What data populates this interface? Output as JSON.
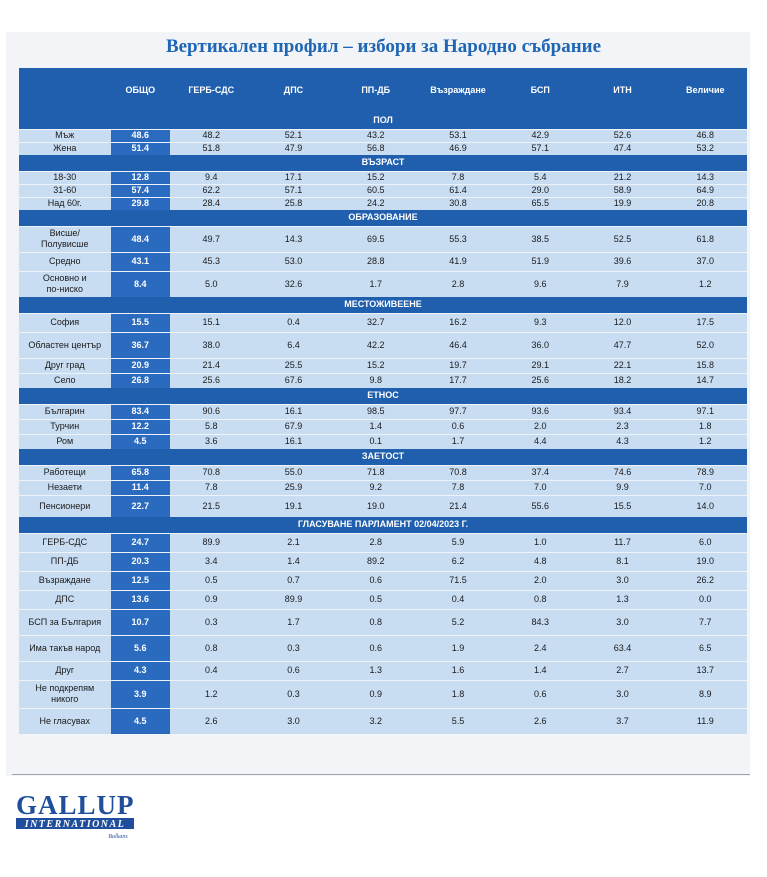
{
  "title": "Вертикален профил – избори за Народно събрание",
  "columns": [
    "",
    "ОБЩО",
    "ГЕРБ-СДС",
    "ДПС",
    "ПП-ДБ",
    "Възраждане",
    "БСП",
    "ИТН",
    "Величие"
  ],
  "sections": [
    {
      "title": "ПОЛ",
      "rows": [
        {
          "label": "Мъж",
          "values": [
            "48.6",
            "48.2",
            "52.1",
            "43.2",
            "53.1",
            "42.9",
            "52.6",
            "46.8"
          ]
        },
        {
          "label": "Жена",
          "values": [
            "51.4",
            "51.8",
            "47.9",
            "56.8",
            "46.9",
            "57.1",
            "47.4",
            "53.2"
          ]
        }
      ]
    },
    {
      "title": "ВЪЗРАСТ",
      "rows": [
        {
          "label": "18-30",
          "values": [
            "12.8",
            "9.4",
            "17.1",
            "15.2",
            "7.8",
            "5.4",
            "21.2",
            "14.3"
          ]
        },
        {
          "label": "31-60",
          "values": [
            "57.4",
            "62.2",
            "57.1",
            "60.5",
            "61.4",
            "29.0",
            "58.9",
            "64.9"
          ]
        },
        {
          "label": "Над 60г.",
          "values": [
            "29.8",
            "28.4",
            "25.8",
            "24.2",
            "30.8",
            "65.5",
            "19.9",
            "20.8"
          ]
        }
      ]
    },
    {
      "title": "ОБРАЗОВАНИЕ",
      "rows": [
        {
          "label": "Висше/\nПолувисше",
          "values": [
            "48.4",
            "49.7",
            "14.3",
            "69.5",
            "55.3",
            "38.5",
            "52.5",
            "61.8"
          ]
        },
        {
          "label": "Средно",
          "values": [
            "43.1",
            "45.3",
            "53.0",
            "28.8",
            "41.9",
            "51.9",
            "39.6",
            "37.0"
          ]
        },
        {
          "label": "Основно и\nпо-ниско",
          "values": [
            "8.4",
            "5.0",
            "32.6",
            "1.7",
            "2.8",
            "9.6",
            "7.9",
            "1.2"
          ]
        }
      ]
    },
    {
      "title": "МЕСТОЖИВЕЕНЕ",
      "rows": [
        {
          "label": "София",
          "values": [
            "15.5",
            "15.1",
            "0.4",
            "32.7",
            "16.2",
            "9.3",
            "12.0",
            "17.5"
          ]
        },
        {
          "label": "Областен център",
          "values": [
            "36.7",
            "38.0",
            "6.4",
            "42.2",
            "46.4",
            "36.0",
            "47.7",
            "52.0"
          ]
        },
        {
          "label": "Друг град",
          "values": [
            "20.9",
            "21.4",
            "25.5",
            "15.2",
            "19.7",
            "29.1",
            "22.1",
            "15.8"
          ]
        },
        {
          "label": "Село",
          "values": [
            "26.8",
            "25.6",
            "67.6",
            "9.8",
            "17.7",
            "25.6",
            "18.2",
            "14.7"
          ]
        }
      ]
    },
    {
      "title": "ЕТНОС",
      "rows": [
        {
          "label": "Българин",
          "values": [
            "83.4",
            "90.6",
            "16.1",
            "98.5",
            "97.7",
            "93.6",
            "93.4",
            "97.1"
          ]
        },
        {
          "label": "Турчин",
          "values": [
            "12.2",
            "5.8",
            "67.9",
            "1.4",
            "0.6",
            "2.0",
            "2.3",
            "1.8"
          ]
        },
        {
          "label": "Ром",
          "values": [
            "4.5",
            "3.6",
            "16.1",
            "0.1",
            "1.7",
            "4.4",
            "4.3",
            "1.2"
          ]
        }
      ]
    },
    {
      "title": "ЗАЕТОСТ",
      "rows": [
        {
          "label": "Работещи",
          "values": [
            "65.8",
            "70.8",
            "55.0",
            "71.8",
            "70.8",
            "37.4",
            "74.6",
            "78.9"
          ]
        },
        {
          "label": "Незаети",
          "values": [
            "11.4",
            "7.8",
            "25.9",
            "9.2",
            "7.8",
            "7.0",
            "9.9",
            "7.0"
          ]
        },
        {
          "label": "Пенсионери",
          "values": [
            "22.7",
            "21.5",
            "19.1",
            "19.0",
            "21.4",
            "55.6",
            "15.5",
            "14.0"
          ]
        }
      ]
    },
    {
      "title": "ГЛАСУВАНЕ ПАРЛАМЕНТ 02/04/2023 Г.",
      "rows": [
        {
          "label": "ГЕРБ-СДС",
          "values": [
            "24.7",
            "89.9",
            "2.1",
            "2.8",
            "5.9",
            "1.0",
            "11.7",
            "6.0"
          ]
        },
        {
          "label": "ПП-ДБ",
          "values": [
            "20.3",
            "3.4",
            "1.4",
            "89.2",
            "6.2",
            "4.8",
            "8.1",
            "19.0"
          ]
        },
        {
          "label": "Възраждане",
          "values": [
            "12.5",
            "0.5",
            "0.7",
            "0.6",
            "71.5",
            "2.0",
            "3.0",
            "26.2"
          ]
        },
        {
          "label": "ДПС",
          "values": [
            "13.6",
            "0.9",
            "89.9",
            "0.5",
            "0.4",
            "0.8",
            "1.3",
            "0.0"
          ]
        },
        {
          "label": "БСП за България",
          "values": [
            "10.7",
            "0.3",
            "1.7",
            "0.8",
            "5.2",
            "84.3",
            "3.0",
            "7.7"
          ]
        },
        {
          "label": "Има такъв народ",
          "values": [
            "5.6",
            "0.8",
            "0.3",
            "0.6",
            "1.9",
            "2.4",
            "63.4",
            "6.5"
          ]
        },
        {
          "label": "Друг",
          "values": [
            "4.3",
            "0.4",
            "0.6",
            "1.3",
            "1.6",
            "1.4",
            "2.7",
            "13.7"
          ]
        },
        {
          "label": "Не подкрепям\nникого",
          "values": [
            "3.9",
            "1.2",
            "0.3",
            "0.9",
            "1.8",
            "0.6",
            "3.0",
            "8.9"
          ]
        },
        {
          "label": "Не гласувах",
          "values": [
            "4.5",
            "2.6",
            "3.0",
            "3.2",
            "5.5",
            "2.6",
            "3.7",
            "11.9"
          ]
        }
      ]
    }
  ],
  "logo": {
    "line1": "GALLUP",
    "line2": "INTERNATIONAL",
    "line3": "Balkans"
  },
  "colors": {
    "header": "#1f5fae",
    "total": "#2a6bbf",
    "cell": "#c8dcf2",
    "title": "#1f66b4"
  }
}
